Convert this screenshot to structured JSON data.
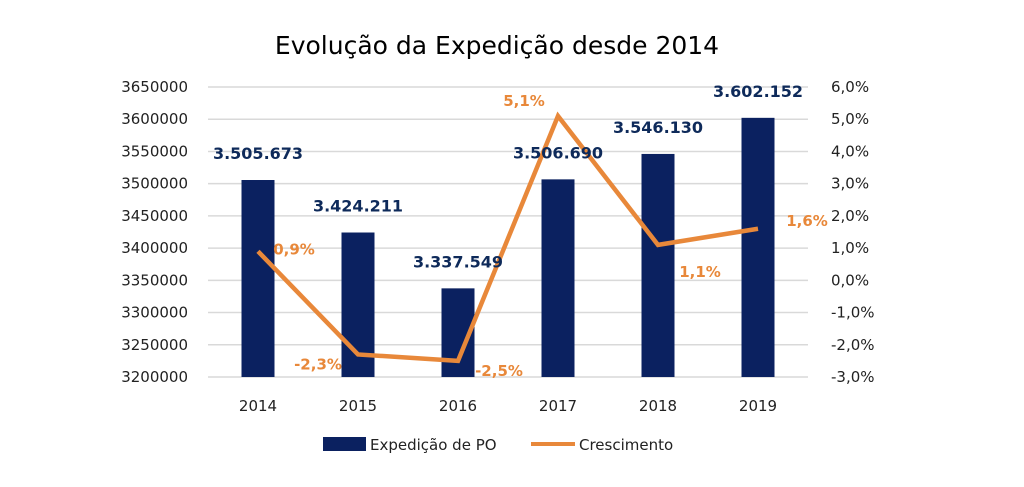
{
  "chart_data": {
    "type": "bar",
    "title": "Evolução da Expedição desde 2014",
    "categories": [
      "2014",
      "2015",
      "2016",
      "2017",
      "2018",
      "2019"
    ],
    "series": [
      {
        "name": "Expedição de PO",
        "type": "bar",
        "axis": "left",
        "color": "#0b2160",
        "values": [
          3505673,
          3424211,
          3337549,
          3506690,
          3546130,
          3602152
        ],
        "labels": [
          "3.505.673",
          "3.424.211",
          "3.337.549",
          "3.506.690",
          "3.546.130",
          "3.602.152"
        ]
      },
      {
        "name": "Crescimento",
        "type": "line",
        "axis": "right",
        "color": "#e8883a",
        "values": [
          0.9,
          -2.3,
          -2.5,
          5.1,
          1.1,
          1.6
        ],
        "labels": [
          "0,9%",
          "-2,3%",
          "-2,5%",
          "5,1%",
          "1,1%",
          "1,6%"
        ]
      }
    ],
    "y_left": {
      "ylim": [
        3200000,
        3650000
      ],
      "ticks": [
        "3200000",
        "3250000",
        "3300000",
        "3350000",
        "3400000",
        "3450000",
        "3500000",
        "3550000",
        "3600000",
        "3650000"
      ]
    },
    "y_right": {
      "ylim": [
        -3.0,
        6.0
      ],
      "ticks": [
        "-3,0%",
        "-2,0%",
        "-1,0%",
        "0,0%",
        "1,0%",
        "2,0%",
        "3,0%",
        "4,0%",
        "5,0%",
        "6,0%"
      ]
    },
    "xlabel": "",
    "ylabel": "",
    "grid": true,
    "legend": {
      "position": "bottom",
      "entries": [
        "Expedição de PO",
        "Crescimento"
      ]
    }
  }
}
